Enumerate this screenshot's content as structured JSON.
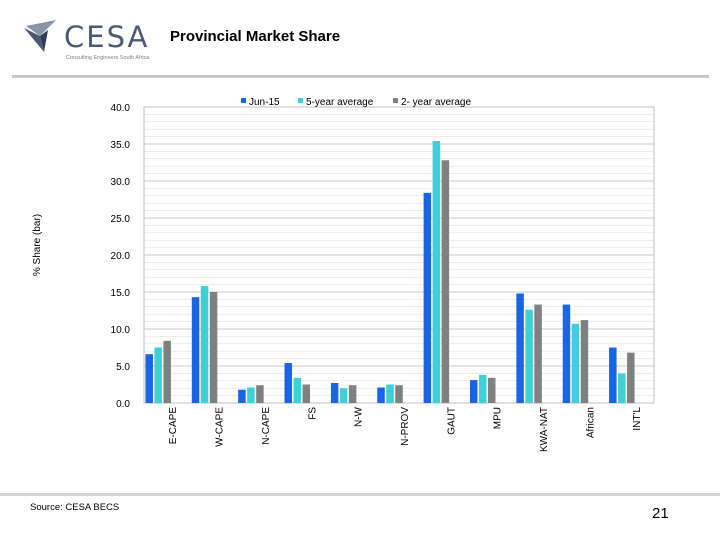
{
  "header": {
    "logo_text": "CESA",
    "logo_tagline": "Consulting Engineers South Africa",
    "title": "Provincial Market Share"
  },
  "footer": {
    "source": "Source: CESA BECS",
    "page_number": "21"
  },
  "colors": {
    "series_1": "#1a64e6",
    "series_2": "#3fcfd6",
    "series_3": "#808080",
    "gridline": "#d9d9d9",
    "logo_mark": "#4b5a73"
  },
  "chart_data": {
    "type": "bar",
    "title": "",
    "xlabel": "",
    "ylabel": "% Share (bar)",
    "ylim": [
      0,
      40
    ],
    "ytick_labels": [
      "0.0",
      "5.0",
      "10.0",
      "15.0",
      "20.0",
      "25.0",
      "30.0",
      "35.0",
      "40.0"
    ],
    "grid": true,
    "legend_position": "top-center",
    "categories": [
      "E-CAPE",
      "W-CAPE",
      "N-CAPE",
      "FS",
      "N-W",
      "N-PROV",
      "GAUT",
      "MPU",
      "KWA-NAT",
      "African",
      "INT'L"
    ],
    "series": [
      {
        "name": "Jun-15",
        "values": [
          6.6,
          14.3,
          1.8,
          5.4,
          2.7,
          2.1,
          28.4,
          3.1,
          14.8,
          13.3,
          7.5
        ]
      },
      {
        "name": "5-year average",
        "values": [
          7.5,
          15.8,
          2.1,
          3.4,
          2.0,
          2.5,
          35.4,
          3.8,
          12.6,
          10.7,
          4.0
        ]
      },
      {
        "name": "2- year average",
        "values": [
          8.4,
          15.0,
          2.4,
          2.5,
          2.4,
          2.4,
          32.8,
          3.4,
          13.3,
          11.2,
          6.8
        ]
      }
    ]
  }
}
